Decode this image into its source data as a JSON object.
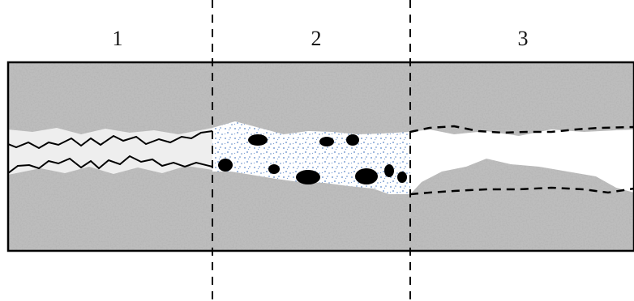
{
  "zones": [
    {
      "label": "1"
    },
    {
      "label": "2"
    },
    {
      "label": "3"
    }
  ],
  "colors": {
    "rock_base": "#b9b9b9",
    "rock_dark": "#6e6e6e",
    "rock_light": "#e2e2e2",
    "outline": "#000000",
    "fracture_void": "#ffffff",
    "zone1_fill": "#eeeeee",
    "zone2_pattern": "#5a86c6",
    "particle": "#000000"
  }
}
